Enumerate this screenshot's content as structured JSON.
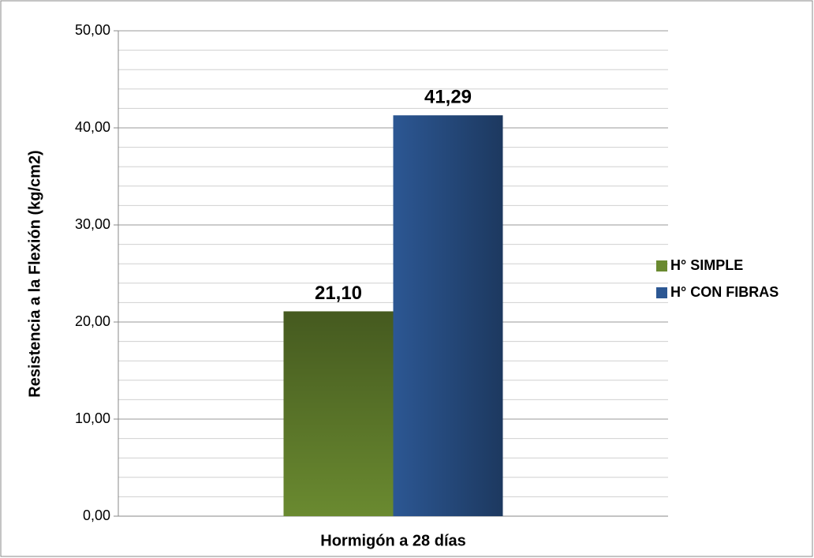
{
  "chart_data": {
    "type": "bar",
    "y_label": "Resistencia a la Flexión (kg/cm2)",
    "categories": [
      "Hormigón a 28 días"
    ],
    "series": [
      {
        "name": "H° SIMPLE",
        "color": "#6a8a30",
        "values": [
          21.1
        ],
        "value_labels": [
          "21,10"
        ]
      },
      {
        "name": "H° CON FIBRAS",
        "color": "#2c5793",
        "values": [
          41.29
        ],
        "value_labels": [
          "41,29"
        ]
      }
    ],
    "ylim": [
      0,
      50
    ],
    "yticks": [
      {
        "value": 0,
        "label": "0,00"
      },
      {
        "value": 10,
        "label": "10,00"
      },
      {
        "value": 20,
        "label": "20,00"
      },
      {
        "value": 30,
        "label": "30,00"
      },
      {
        "value": 40,
        "label": "40,00"
      },
      {
        "value": 50,
        "label": "50,00"
      }
    ],
    "yminorticks": [
      2,
      4,
      6,
      8,
      12,
      14,
      16,
      18,
      22,
      24,
      26,
      28,
      32,
      34,
      36,
      38,
      42,
      44,
      46,
      48
    ],
    "grid": true,
    "legend": "right"
  }
}
